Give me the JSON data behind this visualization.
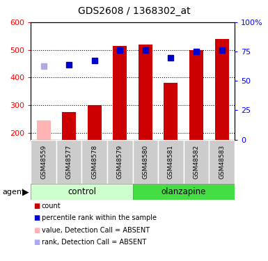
{
  "title": "GDS2608 / 1368302_at",
  "samples": [
    "GSM48559",
    "GSM48577",
    "GSM48578",
    "GSM48579",
    "GSM48580",
    "GSM48581",
    "GSM48582",
    "GSM48583"
  ],
  "bar_values": [
    245,
    275,
    300,
    515,
    520,
    380,
    500,
    540
  ],
  "rank_values": [
    440,
    445,
    460,
    500,
    500,
    470,
    495,
    500
  ],
  "absent_flags": [
    true,
    false,
    false,
    false,
    false,
    false,
    false,
    false
  ],
  "bar_color_normal": "#cc0000",
  "bar_color_absent": "#ffb3b3",
  "rank_color_normal": "#0000cc",
  "rank_color_absent": "#aaaaee",
  "ylim_left": [
    175,
    600
  ],
  "ylim_right": [
    0,
    100
  ],
  "left_ticks": [
    200,
    300,
    400,
    500,
    600
  ],
  "right_ticks": [
    0,
    25,
    50,
    75,
    100
  ],
  "right_tick_labels": [
    "0",
    "25",
    "50",
    "75",
    "100%"
  ],
  "control_label": "control",
  "olanzapine_label": "olanzapine",
  "agent_label": "agent",
  "legend_items": [
    {
      "label": "count",
      "color": "#cc0000"
    },
    {
      "label": "percentile rank within the sample",
      "color": "#0000cc"
    },
    {
      "label": "value, Detection Call = ABSENT",
      "color": "#ffb3b3"
    },
    {
      "label": "rank, Detection Call = ABSENT",
      "color": "#aaaaee"
    }
  ],
  "control_bg_light": "#ccffcc",
  "olanzapine_bg": "#44dd44",
  "sample_bg": "#cccccc",
  "bar_width": 0.55,
  "rank_marker_size": 6
}
